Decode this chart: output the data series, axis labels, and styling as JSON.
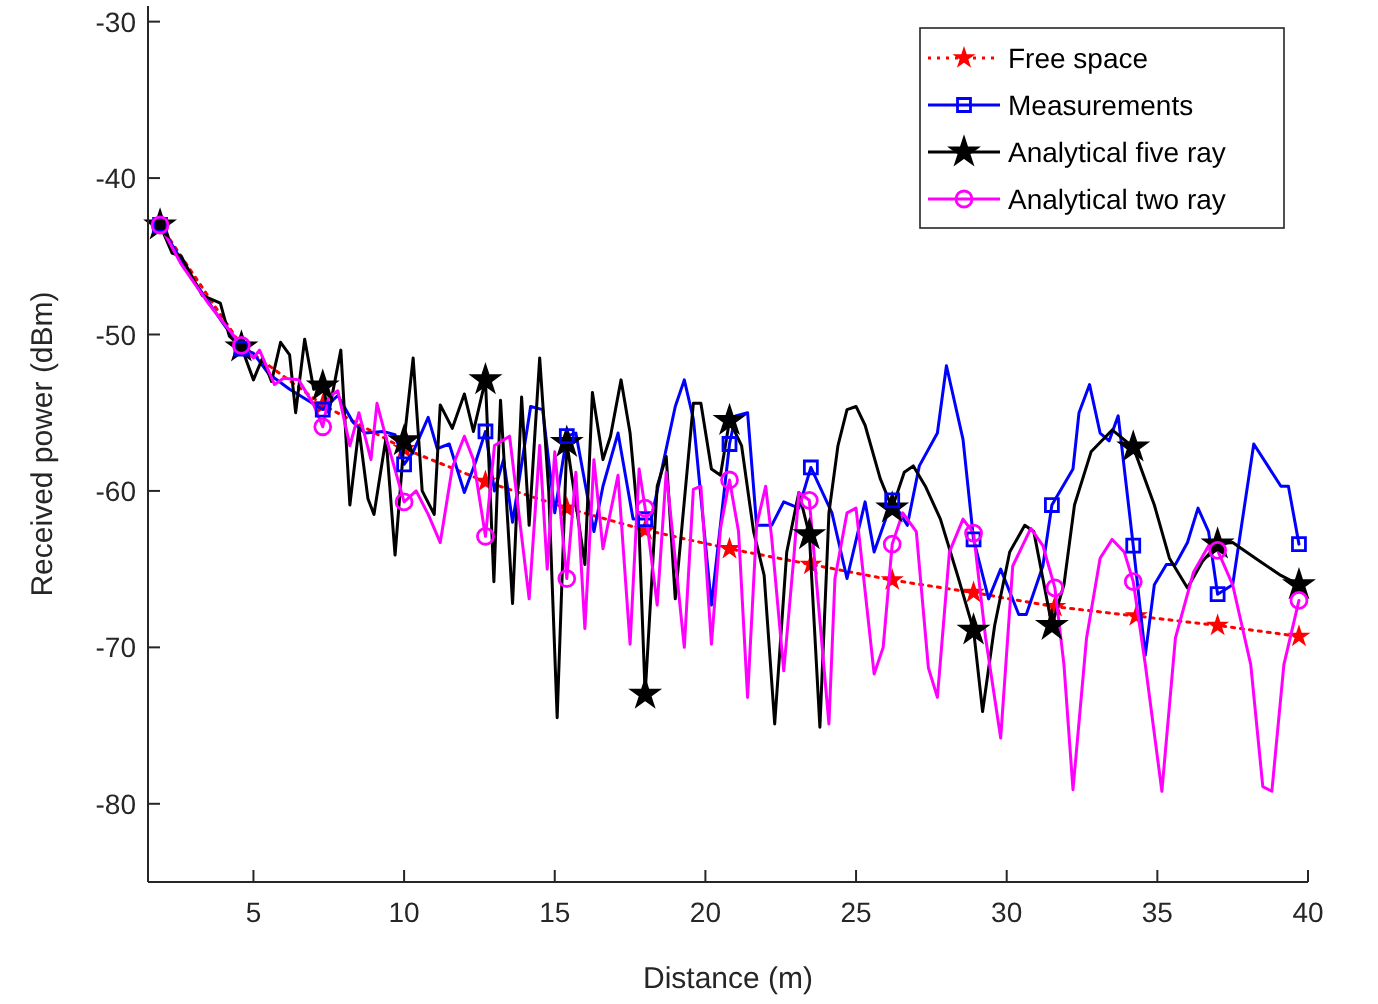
{
  "chart_data": {
    "type": "line",
    "xlabel": "Distance (m)",
    "ylabel": "Received power (dBm)",
    "xlim": [
      1.5,
      40
    ],
    "ylim": [
      -85,
      -29
    ],
    "xticks": [
      5,
      10,
      15,
      20,
      25,
      30,
      35,
      40
    ],
    "yticks": [
      -80,
      -70,
      -60,
      -50,
      -40,
      -30
    ],
    "grid": false,
    "legend": "top right",
    "series": [
      {
        "name": "Free space",
        "color": "#ff0000",
        "marker": "star",
        "line_style": "dotted",
        "x": [
          1.9,
          4.6,
          7.3,
          10,
          12.7,
          15.4,
          18.0,
          20.8,
          23.5,
          26.2,
          28.9,
          31.6,
          34.3,
          37.0,
          39.7
        ],
        "values": [
          -43,
          -50.7,
          -54.5,
          -57.3,
          -59.4,
          -61.1,
          -62.5,
          -63.7,
          -64.7,
          -65.7,
          -66.5,
          -67.4,
          -68.0,
          -68.6,
          -69.3
        ]
      },
      {
        "name": "Measurements",
        "color": "#0000ff",
        "marker": "none",
        "line_style": "solid",
        "x": [
          1.9,
          3.0,
          4.0,
          4.6,
          5.0,
          5.5,
          6.2,
          7.3,
          7.8,
          8.3,
          8.7,
          9.3,
          9.7,
          10.0,
          10.3,
          10.8,
          11.1,
          11.5,
          12.0,
          12.4,
          12.7,
          13.0,
          13.3,
          13.6,
          14.2,
          14.6,
          15.0,
          15.4,
          15.7,
          16.3,
          16.6,
          17.1,
          17.6,
          18.0,
          18.2,
          19.0,
          19.3,
          19.6,
          20.2,
          20.8,
          21.0,
          21.4,
          21.7,
          22.2,
          22.6,
          23.1,
          23.5,
          24.2,
          24.7,
          25.3,
          25.6,
          26.2,
          26.7,
          27.1,
          27.7,
          28.0,
          28.55,
          28.9,
          29.4,
          29.8,
          30.4,
          30.65,
          31.2,
          31.5,
          32.2,
          32.4,
          32.75,
          33.1,
          33.4,
          33.7,
          34.2,
          34.6,
          34.9,
          35.3,
          35.6,
          36.0,
          36.35,
          36.7,
          37.0,
          37.5,
          38.2,
          39.1,
          39.35,
          39.7
        ],
        "values": [
          -43,
          -46.5,
          -49.3,
          -50.9,
          -51.2,
          -52.5,
          -53.5,
          -54.8,
          -53.9,
          -55.6,
          -56.3,
          -56.2,
          -56.4,
          -58.3,
          -57.5,
          -55.3,
          -57.3,
          -57.0,
          -60.1,
          -58.0,
          -56.2,
          -60.0,
          -58.0,
          -62.0,
          -54.6,
          -54.8,
          -61.4,
          -56.5,
          -56.3,
          -62.6,
          -59.7,
          -56.3,
          -61.8,
          -61.8,
          -61.8,
          -54.6,
          -52.9,
          -55.4,
          -67.3,
          -57.0,
          -55.2,
          -55.0,
          -62.2,
          -62.2,
          -60.7,
          -61.1,
          -58.5,
          -61.4,
          -65.6,
          -60.7,
          -63.9,
          -60.6,
          -62.2,
          -58.4,
          -56.3,
          -52.0,
          -56.7,
          -63.1,
          -66.9,
          -65.0,
          -67.9,
          -67.9,
          -64.8,
          -60.9,
          -58.6,
          -55.0,
          -53.2,
          -56.3,
          -56.8,
          -55.2,
          -63.5,
          -70.5,
          -66.0,
          -64.7,
          -64.7,
          -63.3,
          -61.1,
          -62.6,
          -66.6,
          -66.0,
          -57.0,
          -59.7,
          -59.7,
          -63.4
        ]
      },
      {
        "type": "scatter",
        "color": "#0000ff",
        "marker": "square",
        "x": [
          1.9,
          4.6,
          7.3,
          10.0,
          12.7,
          15.4,
          18.0,
          20.8,
          23.5,
          26.2,
          28.9,
          31.5,
          34.2,
          37.0,
          39.7
        ],
        "values": [
          -43,
          -50.9,
          -54.8,
          -58.3,
          -56.2,
          -56.5,
          -61.8,
          -57.0,
          -58.5,
          -60.6,
          -63.1,
          -60.9,
          -63.5,
          -66.6,
          -63.4
        ]
      },
      {
        "name": "Analytical five ray",
        "color": "#000000",
        "marker": "none",
        "line_style": "solid",
        "x": [
          1.9,
          2.3,
          2.6,
          3.3,
          3.9,
          4.2,
          4.6,
          5.0,
          5.3,
          5.6,
          5.9,
          6.2,
          6.4,
          6.7,
          7.0,
          7.3,
          7.5,
          7.9,
          8.2,
          8.5,
          8.8,
          9.0,
          9.4,
          9.7,
          10.0,
          10.3,
          10.6,
          11.0,
          11.2,
          11.6,
          12.0,
          12.3,
          12.7,
          12.98,
          13.2,
          13.6,
          13.9,
          14.15,
          14.5,
          14.8,
          15.08,
          15.4,
          16.0,
          16.25,
          16.6,
          16.85,
          17.2,
          17.5,
          17.8,
          18.0,
          18.4,
          18.7,
          19.0,
          19.6,
          19.85,
          20.2,
          20.5,
          20.8,
          21.2,
          21.6,
          21.95,
          22.3,
          22.7,
          23.1,
          23.45,
          23.8,
          24.1,
          24.4,
          24.7,
          25.0,
          25.3,
          25.8,
          26.2,
          26.6,
          26.9,
          27.3,
          27.8,
          28.4,
          28.9,
          29.2,
          29.6,
          30.1,
          30.6,
          30.9,
          31.2,
          31.5,
          31.9,
          32.25,
          32.8,
          33.5,
          34.2,
          34.9,
          35.4,
          36.0,
          36.5,
          37.0,
          37.5,
          38.4,
          39.1,
          39.7
        ],
        "values": [
          -43,
          -44.8,
          -45.0,
          -47.5,
          -48.0,
          -50.1,
          -50.8,
          -52.9,
          -51.5,
          -53.0,
          -50.5,
          -51.3,
          -55.0,
          -50.3,
          -53.5,
          -53.3,
          -55.0,
          -51.0,
          -60.9,
          -56.0,
          -60.5,
          -61.5,
          -56.6,
          -64.1,
          -56.8,
          -51.5,
          -60.0,
          -61.5,
          -54.5,
          -56.0,
          -53.8,
          -56.2,
          -52.9,
          -65.8,
          -54.2,
          -67.2,
          -54.0,
          -62.2,
          -51.5,
          -60.0,
          -74.5,
          -56.9,
          -64.7,
          -53.7,
          -58.0,
          -56.5,
          -52.9,
          -56.3,
          -62.6,
          -73.0,
          -59.7,
          -57.8,
          -66.9,
          -54.4,
          -54.4,
          -58.6,
          -59.0,
          -55.5,
          -57.1,
          -62.6,
          -65.4,
          -74.9,
          -63.9,
          -60.1,
          -62.8,
          -75.1,
          -61.4,
          -57.1,
          -54.8,
          -54.6,
          -55.8,
          -59.2,
          -61.1,
          -58.8,
          -58.4,
          -59.7,
          -61.8,
          -65.6,
          -68.9,
          -74.1,
          -68.6,
          -63.9,
          -62.2,
          -62.6,
          -65.6,
          -68.6,
          -66.0,
          -60.9,
          -57.5,
          -56.1,
          -57.2,
          -60.9,
          -64.3,
          -66.2,
          -64.5,
          -63.4,
          -63.3,
          -64.5,
          -65.4,
          -66.0
        ]
      },
      {
        "type": "scatter",
        "color": "#000000",
        "marker": "star",
        "x": [
          1.9,
          4.6,
          7.3,
          10.0,
          12.7,
          15.4,
          18.0,
          20.8,
          23.45,
          26.2,
          28.9,
          31.5,
          34.2,
          37.0,
          39.7
        ],
        "values": [
          -43,
          -50.8,
          -53.3,
          -56.8,
          -52.9,
          -56.9,
          -73.0,
          -55.5,
          -62.8,
          -61.1,
          -68.9,
          -68.6,
          -57.2,
          -63.4,
          -66.0
        ]
      },
      {
        "name": "Analytical two ray",
        "color": "#ff00ff",
        "marker": "none",
        "line_style": "solid",
        "x": [
          1.9,
          2.6,
          3.5,
          4.6,
          5.0,
          5.2,
          5.7,
          6.0,
          6.5,
          7.0,
          7.3,
          7.5,
          7.8,
          8.2,
          8.5,
          8.9,
          9.1,
          9.4,
          10.0,
          10.4,
          10.8,
          11.2,
          11.6,
          12.0,
          12.3,
          12.7,
          13.0,
          13.5,
          14.15,
          14.5,
          14.75,
          15.0,
          15.4,
          15.7,
          16.0,
          16.3,
          16.6,
          17.1,
          17.5,
          17.8,
          18.0,
          18.4,
          18.7,
          19.3,
          19.6,
          19.85,
          20.2,
          20.5,
          20.8,
          21.1,
          21.4,
          21.7,
          22.0,
          22.2,
          22.6,
          22.95,
          23.1,
          23.45,
          24.1,
          24.3,
          24.7,
          25.0,
          25.6,
          25.9,
          26.2,
          26.55,
          27.0,
          27.4,
          27.7,
          28.1,
          28.55,
          28.9,
          29.3,
          29.8,
          30.2,
          30.8,
          31.2,
          31.6,
          31.9,
          32.2,
          32.65,
          33.1,
          33.5,
          33.9,
          34.2,
          34.6,
          35.15,
          35.6,
          36.2,
          36.7,
          37.0,
          37.5,
          38.1,
          38.5,
          38.8,
          39.2,
          39.7
        ],
        "values": [
          -43,
          -45.5,
          -48.0,
          -50.7,
          -51.5,
          -51.0,
          -53.2,
          -52.8,
          -52.9,
          -54.5,
          -55.9,
          -54.0,
          -53.6,
          -57.1,
          -55.0,
          -58.0,
          -54.4,
          -56.6,
          -60.7,
          -60.0,
          -61.5,
          -63.3,
          -58.5,
          -56.5,
          -58.0,
          -62.9,
          -57.1,
          -56.5,
          -66.9,
          -57.1,
          -65.0,
          -57.5,
          -65.6,
          -58.8,
          -68.8,
          -58.0,
          -63.7,
          -59.0,
          -69.8,
          -58.6,
          -61.1,
          -67.3,
          -58.8,
          -70.0,
          -59.9,
          -59.7,
          -69.8,
          -62.4,
          -59.3,
          -62.6,
          -73.2,
          -62.2,
          -59.7,
          -63.0,
          -71.5,
          -63.9,
          -60.1,
          -60.6,
          -74.9,
          -65.6,
          -61.4,
          -61.1,
          -71.7,
          -70.0,
          -63.4,
          -61.4,
          -62.6,
          -71.3,
          -73.2,
          -63.9,
          -61.8,
          -62.7,
          -69.4,
          -75.8,
          -64.8,
          -62.4,
          -63.5,
          -66.2,
          -71.1,
          -79.1,
          -69.4,
          -64.3,
          -63.1,
          -63.9,
          -65.8,
          -71.1,
          -79.2,
          -69.4,
          -65.2,
          -63.5,
          -63.8,
          -66.0,
          -71.1,
          -78.9,
          -79.2,
          -71.1,
          -67.0
        ]
      },
      {
        "type": "scatter",
        "color": "#ff00ff",
        "marker": "circle",
        "x": [
          1.9,
          4.6,
          7.3,
          10.0,
          12.7,
          15.4,
          18.0,
          20.8,
          23.45,
          26.2,
          28.9,
          31.6,
          34.2,
          37.0,
          39.7
        ],
        "values": [
          -43,
          -50.7,
          -55.9,
          -60.7,
          -62.9,
          -65.6,
          -61.1,
          -59.3,
          -60.6,
          -63.4,
          -62.7,
          -66.2,
          -65.8,
          -63.8,
          -67.0
        ]
      }
    ]
  }
}
